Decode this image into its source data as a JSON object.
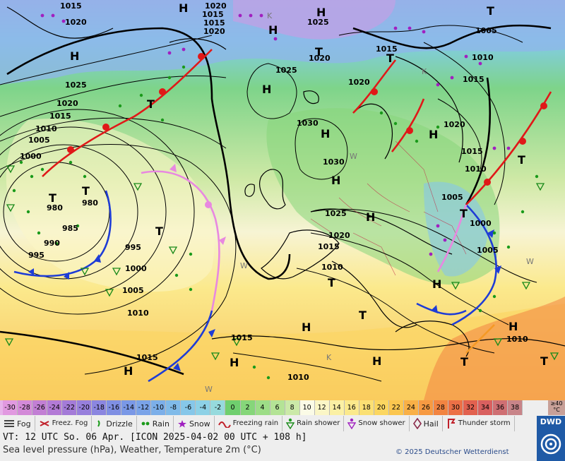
{
  "map": {
    "pressure_labels": [
      "1015",
      "1020",
      "1025",
      "1030",
      "1010",
      "1005",
      "1000",
      "995",
      "990",
      "985",
      "980"
    ],
    "high_label": "H",
    "low_label": "T",
    "corner_low_label": "K",
    "warm_letter": "W"
  },
  "legend": {
    "temp_low_label": "<-30",
    "temp_high_label": "≥40 °C",
    "temperatures": [
      {
        "t": "-30",
        "c": "#e199e0"
      },
      {
        "t": "-28",
        "c": "#d38ad8"
      },
      {
        "t": "-26",
        "c": "#c27fd4"
      },
      {
        "t": "-24",
        "c": "#b37ad6"
      },
      {
        "t": "-22",
        "c": "#a47bd8"
      },
      {
        "t": "-20",
        "c": "#977fdc"
      },
      {
        "t": "-18",
        "c": "#8b86e0"
      },
      {
        "t": "-16",
        "c": "#7f8fe3"
      },
      {
        "t": "-14",
        "c": "#7a98e6"
      },
      {
        "t": "-12",
        "c": "#7aa3e8"
      },
      {
        "t": "-10",
        "c": "#7cafe9"
      },
      {
        "t": "-8",
        "c": "#80bbe9"
      },
      {
        "t": "-6",
        "c": "#86c7e9"
      },
      {
        "t": "-4",
        "c": "#8dd1e6"
      },
      {
        "t": "-2",
        "c": "#96dadd"
      },
      {
        "t": "0",
        "c": "#6fcf6e"
      },
      {
        "t": "2",
        "c": "#86d67a"
      },
      {
        "t": "4",
        "c": "#9ddd87"
      },
      {
        "t": "6",
        "c": "#b4e396"
      },
      {
        "t": "8",
        "c": "#cbe9a8"
      },
      {
        "t": "10",
        "c": "#fbfbe6"
      },
      {
        "t": "12",
        "c": "#fbf6c6"
      },
      {
        "t": "14",
        "c": "#fbf0a4"
      },
      {
        "t": "16",
        "c": "#fbe98c"
      },
      {
        "t": "18",
        "c": "#fbe074"
      },
      {
        "t": "20",
        "c": "#fbd660"
      },
      {
        "t": "22",
        "c": "#fbc64f"
      },
      {
        "t": "24",
        "c": "#f9b046"
      },
      {
        "t": "26",
        "c": "#f79a42"
      },
      {
        "t": "28",
        "c": "#f28441"
      },
      {
        "t": "30",
        "c": "#ec7046"
      },
      {
        "t": "32",
        "c": "#e2614f"
      },
      {
        "t": "34",
        "c": "#d9605f"
      },
      {
        "t": "36",
        "c": "#cf6f73"
      },
      {
        "t": "38",
        "c": "#c88489"
      }
    ],
    "symbols": [
      {
        "name": "fog",
        "label": "Fog"
      },
      {
        "name": "freezing-fog",
        "label": "Freez. Fog"
      },
      {
        "name": "drizzle",
        "label": "Drizzle"
      },
      {
        "name": "rain",
        "label": "Rain"
      },
      {
        "name": "snow",
        "label": "Snow"
      },
      {
        "name": "freezing-rain",
        "label": "Freezing rain"
      },
      {
        "name": "rain-shower",
        "label": "Rain shower"
      },
      {
        "name": "snow-shower",
        "label": "Snow shower"
      },
      {
        "name": "hail",
        "label": "Hail"
      },
      {
        "name": "thunderstorm",
        "label": "Thunder storm"
      }
    ],
    "vt_line": "VT: 12 UTC So.  06 Apr. [ICON 2025-04-02  00 UTC + 108 h]",
    "subtitle": "Sea level pressure (hPa), Weather, Temperature 2m (°C)",
    "copyright": "© 2025 Deutscher Wetterdienst",
    "logo_text": "DWD"
  }
}
